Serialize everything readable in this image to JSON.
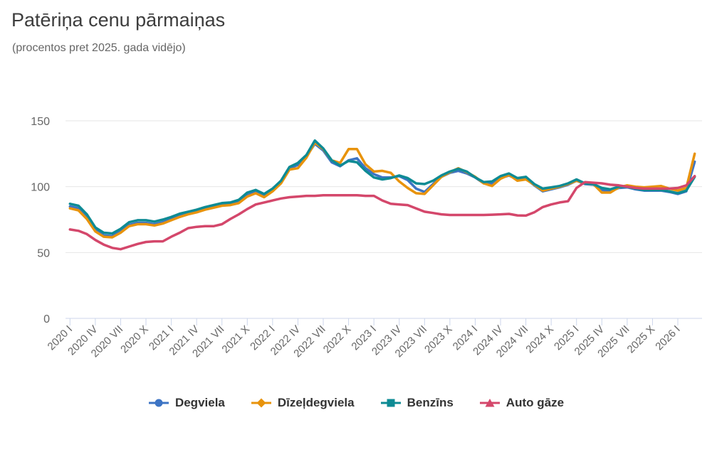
{
  "header": {
    "title": "Patēriņa cenu pārmaiņas",
    "subtitle": "(procentos pret 2025. gada vidējo)"
  },
  "chart_data": {
    "type": "line",
    "title": "Patēriņa cenu pārmaiņas",
    "subtitle": "(procentos pret 2025. gada vidējo)",
    "xlabel": "",
    "ylabel": "",
    "ylim": [
      0,
      160
    ],
    "yticks": [
      0,
      50,
      100,
      150
    ],
    "grid": true,
    "legend_position": "bottom",
    "tick_every": 3,
    "x": [
      "2020 I",
      "2020 II",
      "2020 III",
      "2020 IV",
      "2020 V",
      "2020 VI",
      "2020 VII",
      "2020 VIII",
      "2020 IX",
      "2020 X",
      "2020 XI",
      "2020 XII",
      "2021 I",
      "2021 II",
      "2021 III",
      "2021 IV",
      "2021 V",
      "2021 VI",
      "2021 VII",
      "2021 VIII",
      "2021 IX",
      "2021 X",
      "2021 XI",
      "2021 XII",
      "2022 I",
      "2022 II",
      "2022 III",
      "2022 IV",
      "2022 V",
      "2022 VI",
      "2022 VII",
      "2022 VIII",
      "2022 IX",
      "2022 X",
      "2022 XI",
      "2022 XII",
      "2023 I",
      "2023 II",
      "2023 III",
      "2023 IV",
      "2023 V",
      "2023 VI",
      "2023 VII",
      "2023 VIII",
      "2023 IX",
      "2023 X",
      "2023 XI",
      "2023 XII",
      "2024 I",
      "2024 II",
      "2024 III",
      "2024 IV",
      "2024 V",
      "2024 VI",
      "2024 VII",
      "2024 VIII",
      "2024 IX",
      "2024 X",
      "2024 XI",
      "2024 XII",
      "2025 I",
      "2025 II",
      "2025 III",
      "2025 IV",
      "2025 V",
      "2025 VI",
      "2025 VII",
      "2025 VIII",
      "2025 IX",
      "2025 X",
      "2025 XI",
      "2025 XII",
      "2026 I",
      "2026 II",
      "2026 III"
    ],
    "series": [
      {
        "name": "Degviela",
        "color": "#3d74c4",
        "marker": "circle",
        "values": [
          85,
          83.5,
          77,
          67,
          63,
          62.5,
          66,
          71,
          72.5,
          72.5,
          71.5,
          73,
          75.5,
          78,
          79.5,
          81,
          83,
          84.5,
          86,
          86.5,
          88.5,
          93.5,
          96,
          93,
          97.5,
          103.5,
          114,
          116.5,
          123,
          132.5,
          127.5,
          118.5,
          115.5,
          120,
          121.5,
          114,
          109.5,
          107,
          107,
          108,
          105,
          98.5,
          96,
          102,
          107.5,
          110.5,
          112,
          110,
          107,
          102.5,
          102.5,
          106.5,
          108.5,
          105.5,
          106,
          101,
          96.5,
          98,
          99.5,
          101.5,
          104.5,
          102,
          101.5,
          97.5,
          96.5,
          99,
          99.5,
          98,
          97,
          97,
          97,
          96,
          94.5,
          96.5,
          119
        ]
      },
      {
        "name": "Dīzeļdegviela",
        "color": "#e8930c",
        "marker": "diamond",
        "values": [
          83.5,
          82,
          75.5,
          66,
          62,
          61.5,
          65,
          70,
          71.5,
          71.5,
          70.5,
          72,
          74.5,
          77,
          79,
          80.5,
          82.5,
          84,
          85.5,
          86,
          87.5,
          92.5,
          95,
          92,
          96.5,
          102.5,
          113,
          114,
          122,
          133.5,
          128.5,
          120,
          118,
          128.5,
          128.5,
          117,
          111.5,
          112,
          110.5,
          104,
          99,
          95,
          94.5,
          101,
          107.5,
          111,
          114,
          111,
          107.5,
          102.5,
          100.5,
          106,
          109,
          104.5,
          105.5,
          101.5,
          97,
          98.5,
          100,
          102,
          104.5,
          102.5,
          102,
          95.5,
          95.5,
          99.5,
          101,
          100,
          99.5,
          100,
          100.5,
          98.5,
          97,
          99,
          125
        ]
      },
      {
        "name": "Benzīns",
        "color": "#0e8b94",
        "marker": "square",
        "values": [
          87,
          85.5,
          79,
          69,
          65,
          64.5,
          68,
          73,
          74.5,
          74.5,
          73.5,
          75,
          77,
          79.5,
          81,
          82.5,
          84.5,
          86,
          87.5,
          88,
          90,
          95.5,
          97.5,
          94.5,
          98.5,
          104.5,
          115,
          118,
          124,
          135,
          129,
          120,
          116,
          119.5,
          118.5,
          112,
          107,
          105.5,
          106.5,
          108.5,
          106.5,
          102.5,
          102,
          104.5,
          108.5,
          111.5,
          113.5,
          111.5,
          107,
          103.5,
          104,
          108,
          110,
          106.5,
          107.5,
          102,
          98.5,
          99.5,
          100.5,
          102.5,
          105.5,
          102.5,
          102,
          99,
          98,
          100,
          100,
          98.5,
          97.5,
          97.5,
          97.5,
          96.5,
          95,
          97,
          107.5
        ]
      },
      {
        "name": "Auto gāze",
        "color": "#d4476b",
        "marker": "triangle",
        "values": [
          67.5,
          66.5,
          64,
          59.5,
          56,
          53.5,
          52.5,
          54.5,
          56.5,
          58,
          58.5,
          58.5,
          62,
          65,
          68.5,
          69.5,
          70,
          70,
          71.5,
          75.5,
          79,
          83,
          86.5,
          88,
          89.5,
          91,
          92,
          92.5,
          93,
          93,
          93.5,
          93.5,
          93.5,
          93.5,
          93.5,
          93,
          93,
          89.5,
          87,
          86.5,
          86,
          83.5,
          81,
          80,
          79,
          78.5,
          78.5,
          78.5,
          78.5,
          78.5,
          78.7,
          79,
          79.3,
          78.2,
          78,
          80.5,
          84.5,
          86.5,
          88,
          89,
          99,
          103.5,
          103,
          102.5,
          101.5,
          101,
          100,
          99,
          98.5,
          98.5,
          98.5,
          98.5,
          99,
          101,
          108
        ]
      }
    ],
    "colors": {
      "gridline": "#e6e6e6",
      "axis_line": "#ccd6eb",
      "tick": "#ccd6eb",
      "axis_label": "#666666",
      "title": "#3d3d3d",
      "subtitle": "#666666",
      "legend_text": "#333333"
    }
  }
}
